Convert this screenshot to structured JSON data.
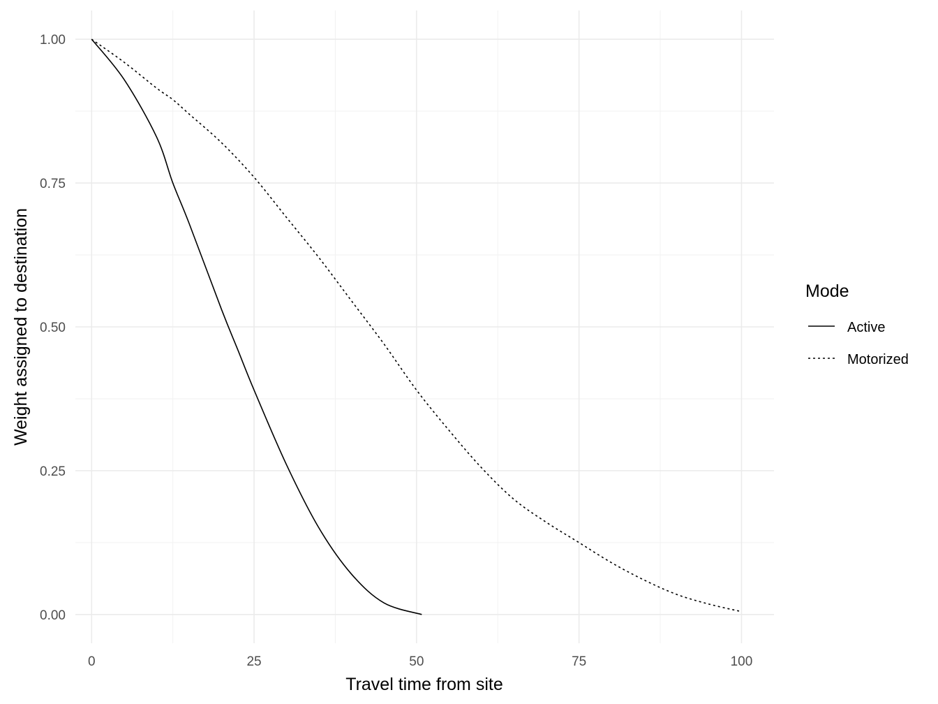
{
  "chart_data": {
    "type": "line",
    "title": "",
    "xlabel": "Travel time from site",
    "ylabel": "Weight assigned to destination",
    "xlim": [
      -2.5,
      105
    ],
    "ylim": [
      -0.05,
      1.05
    ],
    "x_ticks": [
      0,
      25,
      50,
      75,
      100
    ],
    "x_tick_labels": [
      "0",
      "25",
      "50",
      "75",
      "100"
    ],
    "y_ticks": [
      0,
      0.25,
      0.5,
      0.75,
      1
    ],
    "y_tick_labels": [
      "0.00",
      "0.25",
      "0.50",
      "0.75",
      "1.00"
    ],
    "grid": true,
    "legend": {
      "title": "Mode",
      "position": "right"
    },
    "series": [
      {
        "name": "Active",
        "linetype": "solid",
        "color": "#000000",
        "x": [
          0,
          5,
          10,
          12.5,
          15,
          20,
          22.5,
          25,
          30,
          35,
          40,
          45,
          50.8
        ],
        "y": [
          1.0,
          0.93,
          0.83,
          0.75,
          0.68,
          0.53,
          0.46,
          0.39,
          0.26,
          0.15,
          0.07,
          0.02,
          0.0
        ]
      },
      {
        "name": "Motorized",
        "linetype": "dotted",
        "color": "#000000",
        "x": [
          0,
          5,
          10,
          12.5,
          15,
          20,
          25,
          30,
          35,
          40,
          45,
          50,
          55,
          60,
          65,
          70,
          75,
          80,
          85,
          90,
          95,
          100
        ],
        "y": [
          1.0,
          0.96,
          0.915,
          0.895,
          0.87,
          0.82,
          0.76,
          0.69,
          0.62,
          0.545,
          0.47,
          0.39,
          0.32,
          0.255,
          0.2,
          0.16,
          0.125,
          0.09,
          0.06,
          0.035,
          0.018,
          0.005
        ]
      }
    ]
  }
}
